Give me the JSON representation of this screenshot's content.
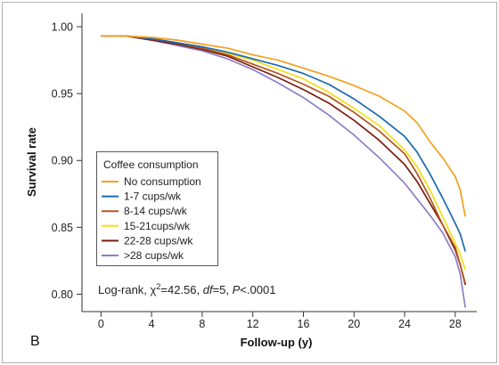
{
  "panel_label": "B",
  "chart_data": {
    "type": "line",
    "title": "",
    "xlabel": "Follow-up (y)",
    "ylabel": "Survival rate",
    "xlim": [
      -1.5,
      29.7
    ],
    "ylim": [
      0.787,
      1.01
    ],
    "xticks": [
      0,
      4,
      8,
      12,
      16,
      20,
      24,
      28
    ],
    "yticks": [
      1.0,
      0.95,
      0.9,
      0.85,
      0.8
    ],
    "ytick_labels": [
      "1.00",
      "0.95",
      "0.90",
      "0.85",
      "0.80"
    ],
    "grid": false,
    "axis_color": "#333333",
    "legend": {
      "title": "Coffee consumption",
      "placement": "lower-left"
    },
    "annotation": {
      "prefix": "Log-rank, χ",
      "chi_exponent": "2",
      "statistic": "=42.56, ",
      "df_symbol": "df",
      "df_value": "=5, ",
      "p_symbol": "P",
      "p_value": "<.0001"
    },
    "x": [
      0,
      2,
      4,
      6,
      8,
      10,
      12,
      14,
      16,
      18,
      20,
      22,
      24,
      25,
      26,
      27,
      28,
      28.4,
      28.8
    ],
    "series": [
      {
        "name": "No consumption",
        "color": "#F5A01E",
        "values": [
          0.993,
          0.993,
          0.992,
          0.99,
          0.987,
          0.984,
          0.979,
          0.975,
          0.969,
          0.963,
          0.956,
          0.948,
          0.937,
          0.928,
          0.914,
          0.902,
          0.888,
          0.878,
          0.858
        ]
      },
      {
        "name": "1-7 cups/wk",
        "color": "#1C6AB0",
        "values": [
          0.993,
          0.993,
          0.991,
          0.988,
          0.985,
          0.981,
          0.976,
          0.971,
          0.965,
          0.957,
          0.946,
          0.933,
          0.918,
          0.906,
          0.89,
          0.872,
          0.853,
          0.845,
          0.832
        ]
      },
      {
        "name": "8-14 cups/wk",
        "color": "#B2561E",
        "values": [
          0.993,
          0.993,
          0.991,
          0.988,
          0.984,
          0.979,
          0.972,
          0.965,
          0.957,
          0.948,
          0.936,
          0.922,
          0.905,
          0.89,
          0.872,
          0.852,
          0.835,
          0.822,
          0.808
        ]
      },
      {
        "name": "15-21cups/wk",
        "color": "#F4DD1A",
        "values": [
          0.993,
          0.993,
          0.991,
          0.988,
          0.984,
          0.98,
          0.975,
          0.968,
          0.961,
          0.951,
          0.939,
          0.926,
          0.908,
          0.895,
          0.878,
          0.858,
          0.838,
          0.83,
          0.818
        ]
      },
      {
        "name": "22-28 cups/wk",
        "color": "#7B1C12",
        "values": [
          0.993,
          0.993,
          0.99,
          0.987,
          0.983,
          0.978,
          0.97,
          0.962,
          0.953,
          0.943,
          0.93,
          0.915,
          0.897,
          0.884,
          0.868,
          0.852,
          0.833,
          0.822,
          0.807
        ]
      },
      {
        "name": ">28 cups/wk",
        "color": "#8C7FC9",
        "values": [
          0.993,
          0.993,
          0.99,
          0.986,
          0.982,
          0.976,
          0.968,
          0.958,
          0.947,
          0.934,
          0.919,
          0.902,
          0.883,
          0.871,
          0.859,
          0.846,
          0.828,
          0.815,
          0.79
        ]
      }
    ]
  }
}
